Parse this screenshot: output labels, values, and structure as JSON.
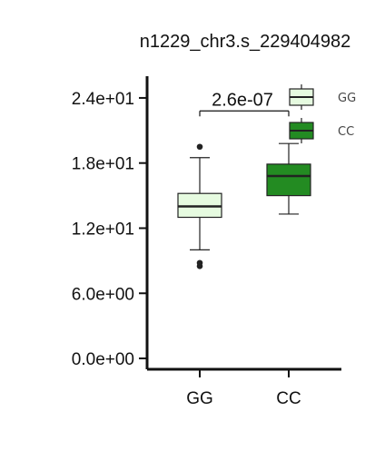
{
  "chart_data": {
    "type": "box",
    "title": "n1229_chr3.s_229404982",
    "xlabel": "",
    "ylabel": "",
    "ylim": [
      -1.0,
      26.0
    ],
    "yticks": [
      0,
      6,
      12,
      18,
      24
    ],
    "ytick_labels": [
      "0.0e+00",
      "6.0e+00",
      "1.2e+01",
      "1.8e+01",
      "2.4e+01"
    ],
    "categories": [
      "GG",
      "CC"
    ],
    "boxes": [
      {
        "name": "GG",
        "whisker_low": 10.0,
        "q1": 13.0,
        "median": 14.0,
        "q3": 15.2,
        "whisker_high": 18.5,
        "outliers": [
          19.5,
          8.5,
          8.8
        ],
        "color": "#e6fbe0"
      },
      {
        "name": "CC",
        "whisker_low": 13.3,
        "q1": 15.0,
        "median": 16.8,
        "q3": 17.9,
        "whisker_high": 19.8,
        "outliers": [],
        "color": "#238b22"
      }
    ],
    "annotation": {
      "text": "2.6e-07",
      "between": [
        "GG",
        "CC"
      ],
      "y": 22.8
    },
    "legend": {
      "placement": "top-right, inside",
      "entries": [
        {
          "label": "GG",
          "color": "#e6fbe0"
        },
        {
          "label": "CC",
          "color": "#238b22"
        }
      ]
    },
    "grid": false
  }
}
